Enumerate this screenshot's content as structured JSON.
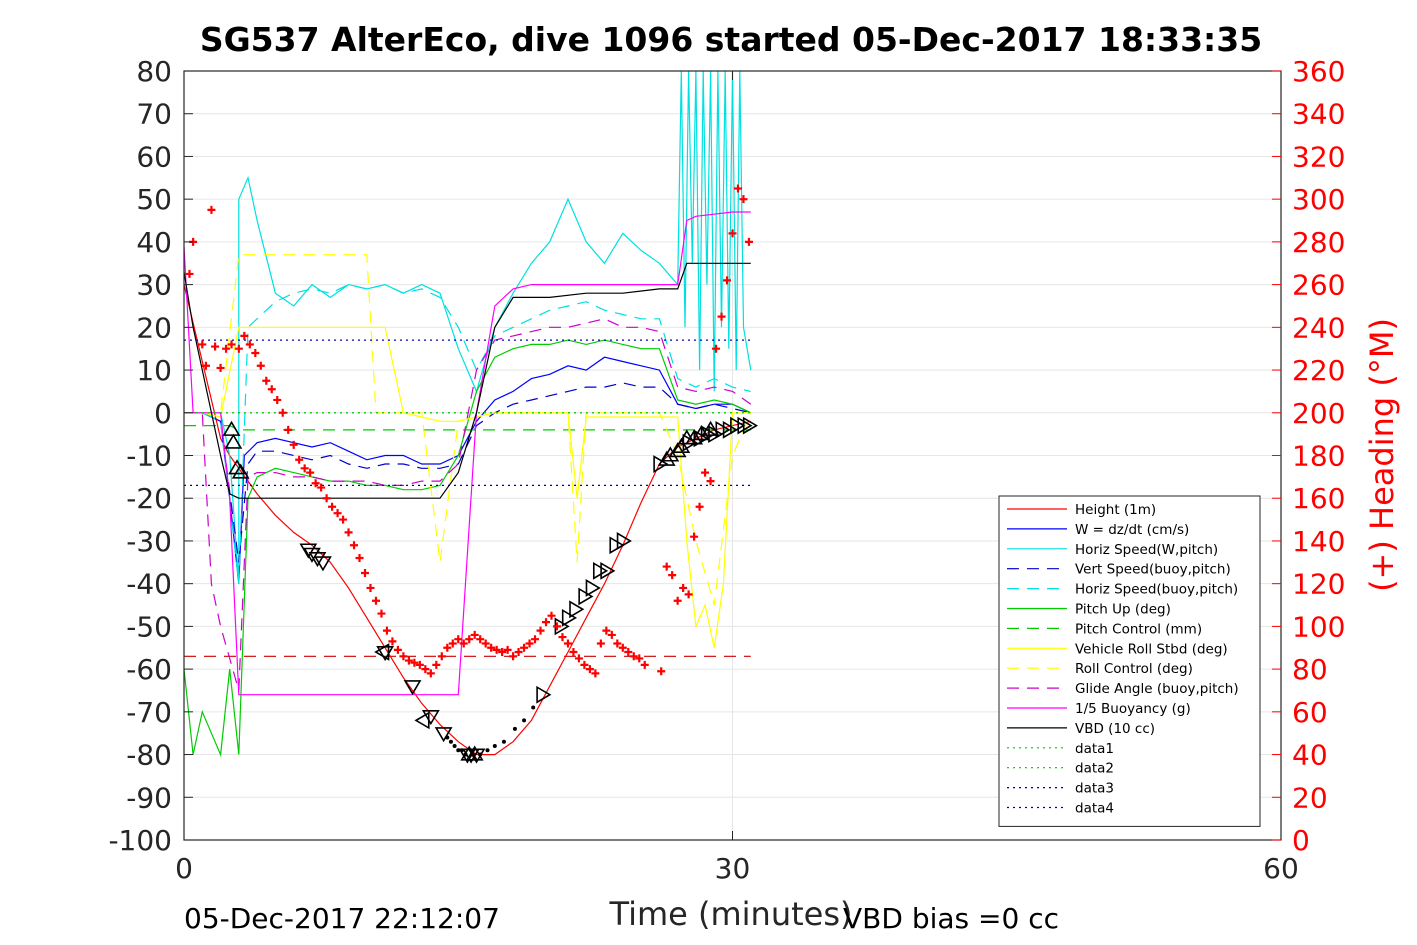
{
  "chart_data": {
    "type": "line",
    "title": "SG537 AlterEco, dive 1096 started 05-Dec-2017 18:33:35",
    "xlabel": "Time (minutes)",
    "ylabel_right": "(+) Heading (°M)",
    "xlim": [
      0,
      60
    ],
    "ylim_left": [
      -100,
      80
    ],
    "ylim_right": [
      0,
      360
    ],
    "x_ticks": [
      0,
      30,
      60
    ],
    "y_ticks_left": [
      80,
      70,
      60,
      50,
      40,
      30,
      20,
      10,
      0,
      -10,
      -20,
      -30,
      -40,
      -50,
      -60,
      -70,
      -80,
      -90,
      -100
    ],
    "y_ticks_right": [
      360,
      340,
      320,
      300,
      280,
      260,
      240,
      220,
      200,
      180,
      160,
      140,
      120,
      100,
      80,
      60,
      40,
      20,
      0
    ],
    "grid": true,
    "legend_position": "lower-right",
    "footer_left": "05-Dec-2017 22:12:07",
    "footer_right": "VBD bias =0 cc",
    "series": [
      {
        "name": "Height (1m)",
        "color": "#ff0000",
        "dash": "solid",
        "x": [
          0,
          1,
          2,
          2.5,
          3,
          3.5,
          4,
          5,
          6,
          7,
          8,
          9,
          10,
          11,
          12,
          13,
          14,
          15,
          16,
          17,
          18,
          19,
          20,
          21,
          22,
          23,
          24,
          25,
          26,
          27,
          28,
          29,
          30,
          31
        ],
        "y": [
          30,
          12,
          -6,
          -10,
          -13,
          -16,
          -19,
          -24,
          -28,
          -31,
          -35,
          -41,
          -48,
          -55,
          -62,
          -68,
          -73,
          -77,
          -80,
          -80,
          -77,
          -72,
          -64,
          -56,
          -48,
          -40,
          -31,
          -21,
          -12,
          -8,
          -6,
          -4,
          -3,
          -2
        ]
      },
      {
        "name": "W = dz/dt (cm/s)",
        "color": "#0000ff",
        "dash": "solid",
        "x": [
          0,
          1,
          2,
          2.5,
          3,
          3.3,
          4,
          5,
          6,
          7,
          8,
          9,
          10,
          11,
          12,
          13,
          14,
          15,
          16,
          17,
          18,
          19,
          20,
          21,
          22,
          23,
          24,
          25,
          26,
          27,
          28,
          29,
          30,
          31
        ],
        "y": [
          0,
          0,
          -2,
          -20,
          -40,
          -10,
          -7,
          -6,
          -7,
          -8,
          -7,
          -9,
          -11,
          -10,
          -10,
          -12,
          -12,
          -10,
          -2,
          3,
          5,
          8,
          9,
          11,
          10,
          13,
          12,
          11,
          10,
          2,
          1,
          2,
          2,
          0
        ]
      },
      {
        "name": "Horiz Speed(W,pitch)",
        "color": "#00e0e0",
        "dash": "solid",
        "x": [
          0,
          1,
          2,
          2.5,
          3,
          3,
          3.5,
          4,
          5,
          6,
          7,
          8,
          9,
          10,
          11,
          12,
          13,
          14,
          15,
          16,
          17,
          18,
          19,
          20,
          21,
          22,
          23,
          24,
          25,
          26,
          27,
          27.2,
          27.4,
          27.6,
          27.8,
          28,
          28.2,
          28.4,
          28.6,
          28.8,
          29,
          29.2,
          29.4,
          29.6,
          29.8,
          30,
          30.2,
          30.4,
          30.6,
          31
        ],
        "y": [
          0,
          0,
          0,
          -10,
          -40,
          50,
          55,
          45,
          28,
          25,
          30,
          27,
          30,
          29,
          30,
          28,
          30,
          28,
          15,
          5,
          20,
          28,
          35,
          40,
          50,
          40,
          35,
          42,
          38,
          35,
          30,
          80,
          20,
          80,
          35,
          80,
          10,
          80,
          30,
          80,
          5,
          80,
          20,
          80,
          15,
          80,
          10,
          80,
          20,
          10
        ]
      },
      {
        "name": "Vert Speed(buoy,pitch)",
        "color": "#0000cc",
        "dash": "12,8",
        "x": [
          0,
          1,
          2,
          3,
          3.5,
          4,
          5,
          6,
          7,
          8,
          9,
          10,
          11,
          12,
          13,
          14,
          15,
          16,
          17,
          18,
          19,
          20,
          21,
          22,
          23,
          24,
          25,
          26,
          27,
          28,
          29,
          30,
          31
        ],
        "y": [
          0,
          0,
          -2,
          -35,
          -12,
          -9,
          -9,
          -10,
          -11,
          -10,
          -12,
          -13,
          -12,
          -12,
          -13,
          -13,
          -12,
          -3,
          0,
          2,
          3,
          4,
          5,
          6,
          6,
          7,
          6,
          6,
          2,
          1,
          2,
          1,
          0
        ]
      },
      {
        "name": "Horiz Speed(buoy,pitch)",
        "color": "#00e0e0",
        "dash": "12,8",
        "x": [
          0,
          1,
          2,
          3,
          3.5,
          4,
          5,
          6,
          7,
          8,
          9,
          10,
          11,
          12,
          13,
          14,
          15,
          16,
          17,
          18,
          19,
          20,
          21,
          22,
          23,
          24,
          25,
          26,
          27,
          28,
          29,
          30,
          31
        ],
        "y": [
          0,
          0,
          -2,
          -40,
          20,
          22,
          26,
          28,
          29,
          28,
          30,
          29,
          30,
          28,
          29,
          27,
          20,
          10,
          18,
          20,
          22,
          24,
          25,
          26,
          24,
          23,
          22,
          22,
          8,
          6,
          8,
          6,
          5
        ]
      },
      {
        "name": "Pitch Up (deg)",
        "color": "#00cc00",
        "dash": "solid",
        "x": [
          0,
          0.5,
          1,
          1.5,
          2,
          2.5,
          3,
          3.5,
          4,
          5,
          6,
          7,
          8,
          9,
          10,
          11,
          12,
          13,
          14,
          15,
          16,
          17,
          18,
          19,
          20,
          21,
          22,
          23,
          24,
          25,
          26,
          27,
          28,
          29,
          30,
          31
        ],
        "y": [
          -60,
          -80,
          -70,
          -75,
          -80,
          -60,
          -80,
          -20,
          -15,
          -13,
          -14,
          -15,
          -16,
          -16,
          -17,
          -17,
          -18,
          -18,
          -17,
          -10,
          5,
          13,
          15,
          16,
          16,
          17,
          16,
          17,
          16,
          15,
          15,
          3,
          2,
          3,
          2,
          0
        ]
      },
      {
        "name": "Pitch Control (mm)",
        "color": "#00cc00",
        "dash": "12,8",
        "x": [
          0,
          2,
          2.5,
          3,
          30,
          31
        ],
        "y": [
          -3,
          -3,
          -3,
          -4,
          -4,
          -4
        ]
      },
      {
        "name": "Vehicle Roll Stbd (deg)",
        "color": "#ffff00",
        "dash": "solid",
        "x": [
          0,
          1,
          2,
          3,
          4,
          6,
          8,
          10,
          11,
          12,
          13,
          14,
          15,
          16,
          17,
          18,
          19,
          20,
          21,
          21.5,
          22,
          23,
          24,
          25,
          26,
          27,
          27.5,
          28,
          28.5,
          29,
          29.5,
          30,
          31
        ],
        "y": [
          0,
          0,
          -1,
          20,
          20,
          20,
          20,
          20,
          20,
          0,
          -1,
          -2,
          -2,
          -1,
          0,
          0,
          0,
          0,
          0,
          -20,
          -1,
          -1,
          -1,
          -1,
          -1,
          -1,
          -30,
          -50,
          -45,
          -55,
          -40,
          0,
          0
        ]
      },
      {
        "name": "Roll Control (deg)",
        "color": "#ffff00",
        "dash": "12,8",
        "x": [
          0,
          2,
          3,
          4,
          10,
          10.5,
          11,
          12,
          13,
          14,
          15,
          16,
          17,
          18,
          19,
          20,
          21,
          21.5,
          22,
          23,
          24,
          25,
          26,
          27,
          28,
          29,
          30,
          31
        ],
        "y": [
          0,
          0,
          37,
          37,
          37,
          0,
          0,
          0,
          0,
          -35,
          -2,
          -1,
          0,
          0,
          0,
          0,
          0,
          -35,
          0,
          0,
          0,
          0,
          0,
          -10,
          -30,
          -45,
          -10,
          0
        ]
      },
      {
        "name": "Glide Angle (buoy,pitch)",
        "color": "#cc00cc",
        "dash": "12,8",
        "x": [
          0,
          1,
          1.5,
          2,
          3,
          3.5,
          4,
          5,
          6,
          7,
          8,
          9,
          10,
          11,
          12,
          13,
          14,
          15,
          16,
          17,
          18,
          19,
          20,
          21,
          22,
          23,
          24,
          25,
          26,
          27,
          28,
          29,
          30,
          31
        ],
        "y": [
          0,
          0,
          -40,
          -50,
          -65,
          -15,
          -14,
          -14,
          -15,
          -15,
          -16,
          -16,
          -16,
          -17,
          -17,
          -16,
          -16,
          -12,
          10,
          17,
          18,
          19,
          20,
          20,
          21,
          22,
          20,
          20,
          19,
          6,
          5,
          6,
          5,
          2
        ]
      },
      {
        "name": "1/5 Buoyancy (g)",
        "color": "#ff00ff",
        "dash": "solid",
        "x": [
          0,
          0.5,
          1,
          2,
          2.5,
          3,
          3.2,
          4,
          6,
          8,
          10,
          12,
          13,
          14,
          15,
          16,
          17,
          18,
          19,
          20,
          22,
          24,
          26,
          27,
          27.5,
          28,
          30,
          31
        ],
        "y": [
          39,
          0,
          0,
          0,
          -20,
          -66,
          -66,
          -66,
          -66,
          -66,
          -66,
          -66,
          -66,
          -66,
          -66,
          0,
          25,
          29,
          30,
          30,
          30,
          30,
          30,
          30,
          45,
          46,
          47,
          47
        ]
      },
      {
        "name": "VBD (10 cc)",
        "color": "#000000",
        "dash": "solid",
        "x": [
          0,
          0.5,
          1,
          2,
          2.5,
          3,
          4,
          6,
          8,
          10,
          12,
          14,
          15,
          16,
          17,
          18,
          19,
          20,
          22,
          24,
          26,
          27,
          27.5,
          28,
          30,
          31
        ],
        "y": [
          33,
          20,
          10,
          -10,
          -19,
          -20,
          -20,
          -20,
          -20,
          -20,
          -20,
          -20,
          -14,
          0,
          20,
          27,
          27,
          27,
          28,
          28,
          29,
          29,
          35,
          35,
          35,
          35
        ]
      },
      {
        "name": "data1",
        "color": "#00cc00",
        "dash": "2,4",
        "x": [
          0,
          31
        ],
        "y": [
          0,
          0
        ]
      },
      {
        "name": "data2",
        "color": "#00cc00",
        "dash": "2,4",
        "x": [
          0,
          31
        ],
        "y": [
          0,
          0
        ]
      },
      {
        "name": "data3",
        "color": "#0000aa",
        "dash": "2,4",
        "x": [
          0,
          31
        ],
        "y": [
          17,
          17
        ]
      },
      {
        "name": "data4",
        "color": "#0000aa",
        "dash": "2,4",
        "x": [
          0,
          31
        ],
        "y": [
          -17,
          -17
        ]
      }
    ],
    "extra_lines": [
      {
        "color": "#cc0000",
        "dash": "12,8",
        "x": [
          0,
          31
        ],
        "y": [
          -57,
          -57
        ]
      }
    ],
    "heading_points": {
      "color": "#ff0000",
      "x": [
        0.3,
        0.5,
        1,
        1.2,
        1.5,
        1.7,
        2,
        2.3,
        2.6,
        3,
        3.3,
        3.6,
        3.9,
        4.2,
        4.5,
        4.8,
        5.1,
        5.4,
        5.7,
        6,
        6.3,
        6.6,
        6.9,
        7.2,
        7.5,
        7.8,
        8.1,
        8.4,
        8.7,
        9,
        9.3,
        9.6,
        9.9,
        10.2,
        10.5,
        10.8,
        11.1,
        11.4,
        11.7,
        12,
        12.3,
        12.6,
        12.9,
        13.2,
        13.5,
        13.8,
        14.1,
        14.4,
        14.7,
        15,
        15.3,
        15.6,
        15.9,
        16.2,
        16.5,
        16.8,
        17.1,
        17.4,
        17.7,
        18,
        18.3,
        18.6,
        18.9,
        19.2,
        19.5,
        19.8,
        20.1,
        20.4,
        20.7,
        21,
        21.3,
        21.6,
        21.9,
        22.2,
        22.5,
        22.8,
        23.1,
        23.4,
        23.7,
        24,
        24.3,
        24.6,
        24.9,
        25.2,
        26.1,
        26.4,
        26.7,
        27,
        27.3,
        27.6,
        27.9,
        28.2,
        28.5,
        28.8,
        29.1,
        29.4,
        29.7,
        30,
        30.3,
        30.6,
        30.9
      ],
      "y": [
        265,
        280,
        232,
        222,
        295,
        231,
        221,
        230,
        232,
        230,
        236,
        232,
        228,
        222,
        215,
        211,
        206,
        200,
        192,
        185,
        178,
        174,
        172,
        167,
        165,
        160,
        156,
        153,
        150,
        144,
        138,
        132,
        125,
        118,
        112,
        106,
        98,
        93,
        89,
        86,
        84,
        83,
        82,
        80,
        78,
        82,
        86,
        90,
        92,
        94,
        92,
        94,
        96,
        94,
        92,
        90,
        89,
        88,
        89,
        86,
        88,
        90,
        92,
        94,
        98,
        102,
        105,
        100,
        95,
        92,
        88,
        85,
        82,
        80,
        78,
        92,
        98,
        96,
        92,
        90,
        88,
        86,
        85,
        82,
        79,
        128,
        124,
        112,
        118,
        115,
        142,
        156,
        172,
        168,
        230,
        245,
        262,
        284,
        305,
        300,
        280
      ]
    },
    "markers": {
      "down": {
        "x": [
          6.8,
          7.0,
          7.3,
          7.6,
          11.0,
          12.5,
          13.5,
          14.2,
          15.5,
          15.7,
          16.0
        ],
        "y": [
          -32,
          -33,
          -34,
          -35,
          -56,
          -64,
          -71,
          -75,
          -80,
          -80,
          -80
        ]
      },
      "up": {
        "x": [
          2.6,
          2.7,
          2.9,
          3.1,
          15.6,
          15.9,
          26.4,
          26.6,
          27,
          27.2,
          27.5,
          27.9,
          28.3,
          28.8
        ],
        "y": [
          -4,
          -7,
          -13,
          -14,
          -80,
          -80,
          -11,
          -10,
          -9,
          -8,
          -6,
          -6,
          -5,
          -4
        ]
      },
      "left": {
        "x": [
          10.9,
          13.1
        ],
        "y": [
          -56,
          -72
        ]
      },
      "right": {
        "x": [
          19.6,
          20.6,
          21.0,
          21.4,
          21.9,
          22.3,
          22.7,
          23.1,
          23.6,
          24.0,
          26.0,
          27.6,
          28.2,
          28.6,
          29.0,
          29.4,
          29.8,
          30.2,
          30.6,
          30.9
        ],
        "y": [
          -66,
          -50,
          -48,
          -46,
          -43,
          -41,
          -37,
          -37,
          -31,
          -30,
          -12,
          -7,
          -6,
          -5,
          -5,
          -4,
          -4,
          -3,
          -3,
          -3
        ]
      },
      "dots": {
        "x": [
          14.4,
          14.6,
          14.8,
          15.0,
          15.2,
          15.4,
          15.8,
          16.2,
          16.6,
          17.0,
          17.5,
          18.1,
          18.6,
          19.1
        ],
        "y": [
          -76,
          -77,
          -78,
          -79,
          -79,
          -80,
          -80,
          -80,
          -79,
          -78,
          -77,
          -74,
          -72,
          -69
        ]
      }
    }
  }
}
